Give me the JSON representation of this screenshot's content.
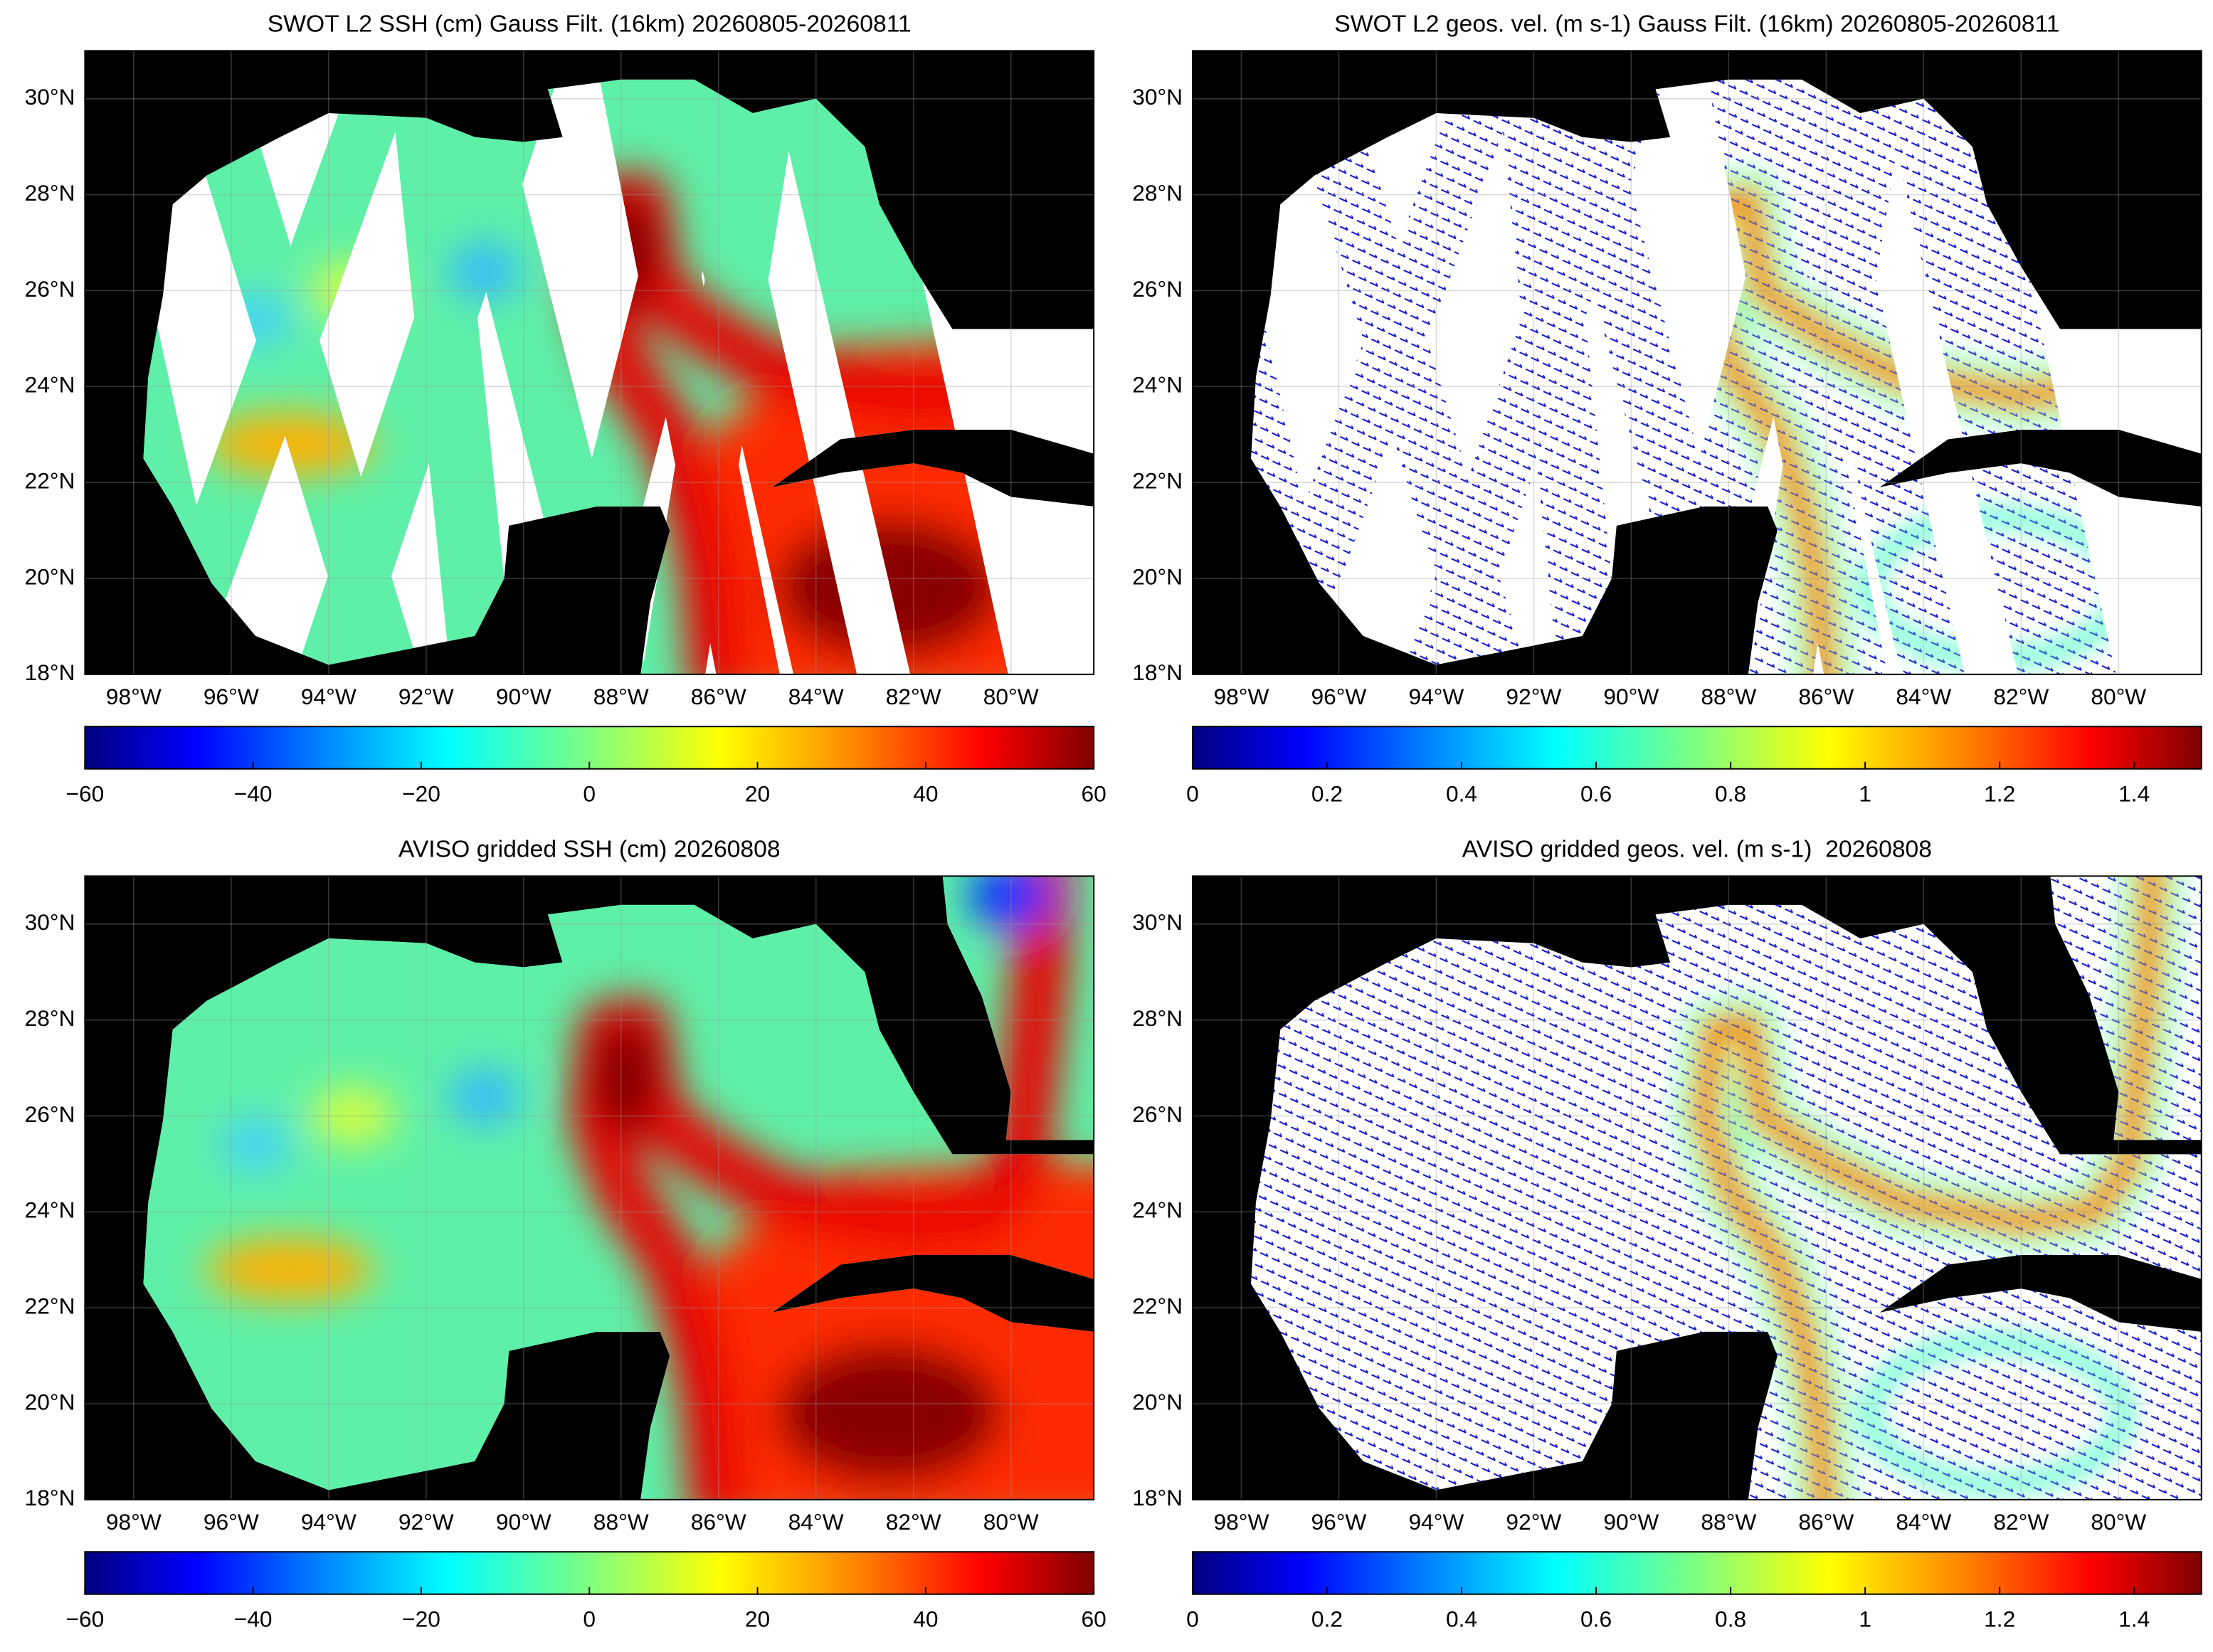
{
  "panels": [
    {
      "title": "SWOT L2 SSH (cm) Gauss Filt. (16km) 20260805-20260811",
      "kind": "ssh",
      "swaths": true,
      "xlim": [
        -99,
        -78.3
      ],
      "ylim": [
        18,
        31
      ],
      "xticks": [
        {
          "value": -98,
          "label": "98°W"
        },
        {
          "value": -96,
          "label": "96°W"
        },
        {
          "value": -94,
          "label": "94°W"
        },
        {
          "value": -92,
          "label": "92°W"
        },
        {
          "value": -90,
          "label": "90°W"
        },
        {
          "value": -88,
          "label": "88°W"
        },
        {
          "value": -86,
          "label": "86°W"
        },
        {
          "value": -84,
          "label": "84°W"
        },
        {
          "value": -82,
          "label": "82°W"
        },
        {
          "value": -80,
          "label": "80°W"
        }
      ],
      "yticks": [
        {
          "value": 18,
          "label": "18°N"
        },
        {
          "value": 20,
          "label": "20°N"
        },
        {
          "value": 22,
          "label": "22°N"
        },
        {
          "value": 24,
          "label": "24°N"
        },
        {
          "value": 26,
          "label": "26°N"
        },
        {
          "value": 28,
          "label": "28°N"
        },
        {
          "value": 30,
          "label": "30°N"
        }
      ],
      "colorbar": {
        "colormap": "jet",
        "lim": [
          -60,
          60
        ],
        "ticks": [
          {
            "value": -60,
            "label": "−60"
          },
          {
            "value": -40,
            "label": "−40"
          },
          {
            "value": -20,
            "label": "−20"
          },
          0,
          20,
          40,
          60
        ]
      }
    },
    {
      "title": "SWOT L2 geos. vel. (m s-1) Gauss Filt. (16km) 20260805-20260811",
      "kind": "vel",
      "swaths": true,
      "xlim": [
        -99,
        -78.3
      ],
      "ylim": [
        18,
        31
      ],
      "xticks": [
        {
          "value": -98,
          "label": "98°W"
        },
        {
          "value": -96,
          "label": "96°W"
        },
        {
          "value": -94,
          "label": "94°W"
        },
        {
          "value": -92,
          "label": "92°W"
        },
        {
          "value": -90,
          "label": "90°W"
        },
        {
          "value": -88,
          "label": "88°W"
        },
        {
          "value": -86,
          "label": "86°W"
        },
        {
          "value": -84,
          "label": "84°W"
        },
        {
          "value": -82,
          "label": "82°W"
        },
        {
          "value": -80,
          "label": "80°W"
        }
      ],
      "yticks": [
        {
          "value": 18,
          "label": "18°N"
        },
        {
          "value": 20,
          "label": "20°N"
        },
        {
          "value": 22,
          "label": "22°N"
        },
        {
          "value": 24,
          "label": "24°N"
        },
        {
          "value": 26,
          "label": "26°N"
        },
        {
          "value": 28,
          "label": "28°N"
        },
        {
          "value": 30,
          "label": "30°N"
        }
      ],
      "colorbar": {
        "colormap": "jet",
        "lim": [
          0,
          1.5
        ],
        "ticks": [
          0,
          0.2,
          0.4,
          0.6,
          0.8,
          1,
          1.2,
          1.4
        ]
      }
    },
    {
      "title": "AVISO gridded SSH (cm) 20260808",
      "kind": "ssh",
      "swaths": false,
      "xlim": [
        -99,
        -78.3
      ],
      "ylim": [
        18,
        31
      ],
      "xticks": [
        {
          "value": -98,
          "label": "98°W"
        },
        {
          "value": -96,
          "label": "96°W"
        },
        {
          "value": -94,
          "label": "94°W"
        },
        {
          "value": -92,
          "label": "92°W"
        },
        {
          "value": -90,
          "label": "90°W"
        },
        {
          "value": -88,
          "label": "88°W"
        },
        {
          "value": -86,
          "label": "86°W"
        },
        {
          "value": -84,
          "label": "84°W"
        },
        {
          "value": -82,
          "label": "82°W"
        },
        {
          "value": -80,
          "label": "80°W"
        }
      ],
      "yticks": [
        {
          "value": 18,
          "label": "18°N"
        },
        {
          "value": 20,
          "label": "20°N"
        },
        {
          "value": 22,
          "label": "22°N"
        },
        {
          "value": 24,
          "label": "24°N"
        },
        {
          "value": 26,
          "label": "26°N"
        },
        {
          "value": 28,
          "label": "28°N"
        },
        {
          "value": 30,
          "label": "30°N"
        }
      ],
      "colorbar": {
        "colormap": "jet",
        "lim": [
          -60,
          60
        ],
        "ticks": [
          {
            "value": -60,
            "label": "−60"
          },
          {
            "value": -40,
            "label": "−40"
          },
          {
            "value": -20,
            "label": "−20"
          },
          0,
          20,
          40,
          60
        ]
      }
    },
    {
      "title": "AVISO gridded geos. vel. (m s-1)  20260808",
      "kind": "vel",
      "swaths": false,
      "xlim": [
        -99,
        -78.3
      ],
      "ylim": [
        18,
        31
      ],
      "xticks": [
        {
          "value": -98,
          "label": "98°W"
        },
        {
          "value": -96,
          "label": "96°W"
        },
        {
          "value": -94,
          "label": "94°W"
        },
        {
          "value": -92,
          "label": "92°W"
        },
        {
          "value": -90,
          "label": "90°W"
        },
        {
          "value": -88,
          "label": "88°W"
        },
        {
          "value": -86,
          "label": "86°W"
        },
        {
          "value": -84,
          "label": "84°W"
        },
        {
          "value": -82,
          "label": "82°W"
        },
        {
          "value": -80,
          "label": "80°W"
        }
      ],
      "yticks": [
        {
          "value": 18,
          "label": "18°N"
        },
        {
          "value": 20,
          "label": "20°N"
        },
        {
          "value": 22,
          "label": "22°N"
        },
        {
          "value": 24,
          "label": "24°N"
        },
        {
          "value": 26,
          "label": "26°N"
        },
        {
          "value": 28,
          "label": "28°N"
        },
        {
          "value": 30,
          "label": "30°N"
        }
      ],
      "colorbar": {
        "colormap": "jet",
        "lim": [
          0,
          1.5
        ],
        "ticks": [
          0,
          0.2,
          0.4,
          0.6,
          0.8,
          1,
          1.2,
          1.4
        ]
      }
    }
  ]
}
